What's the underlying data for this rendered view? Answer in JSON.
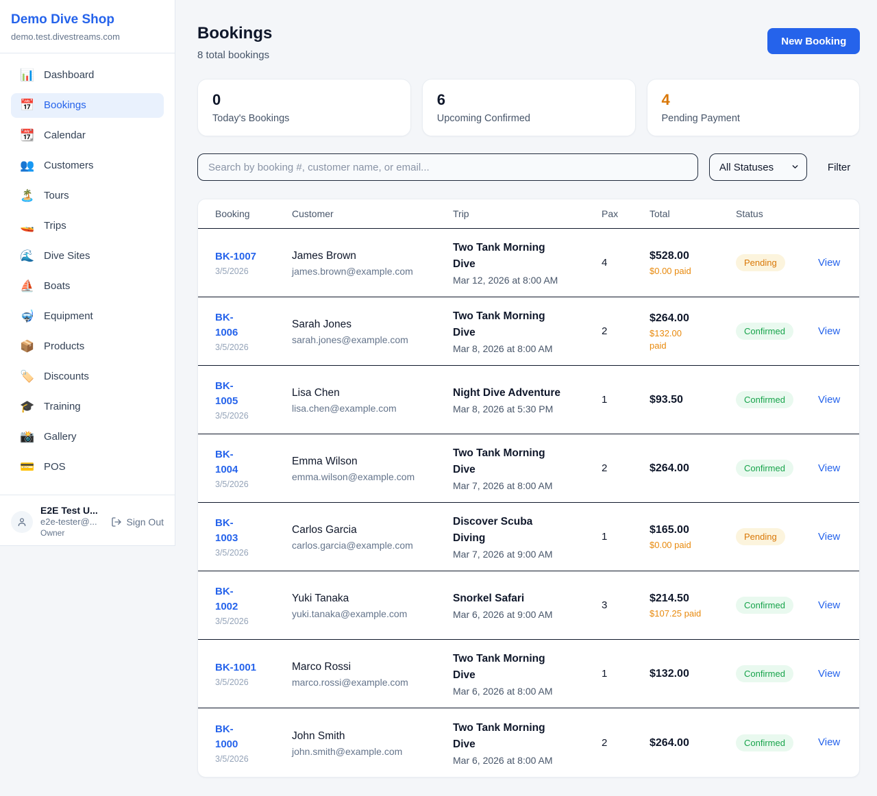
{
  "colors": {
    "accent": "#2563eb",
    "pending_text": "#d97706",
    "pending_bg": "#fcf4dd",
    "confirmed_text": "#16a34a",
    "confirmed_bg": "#e9f9ef",
    "paid_orange": "#e8890c"
  },
  "sidebar": {
    "shop_name": "Demo Dive Shop",
    "shop_domain": "demo.test.divestreams.com",
    "items": [
      {
        "name": "dashboard",
        "icon": "📊",
        "label": "Dashboard",
        "active": false
      },
      {
        "name": "bookings",
        "icon": "📅",
        "label": "Bookings",
        "active": true
      },
      {
        "name": "calendar",
        "icon": "📆",
        "label": "Calendar",
        "active": false
      },
      {
        "name": "customers",
        "icon": "👥",
        "label": "Customers",
        "active": false
      },
      {
        "name": "tours",
        "icon": "🏝️",
        "label": "Tours",
        "active": false
      },
      {
        "name": "trips",
        "icon": "🚤",
        "label": "Trips",
        "active": false
      },
      {
        "name": "dive-sites",
        "icon": "🌊",
        "label": "Dive Sites",
        "active": false
      },
      {
        "name": "boats",
        "icon": "⛵",
        "label": "Boats",
        "active": false
      },
      {
        "name": "equipment",
        "icon": "🤿",
        "label": "Equipment",
        "active": false
      },
      {
        "name": "products",
        "icon": "📦",
        "label": "Products",
        "active": false
      },
      {
        "name": "discounts",
        "icon": "🏷️",
        "label": "Discounts",
        "active": false
      },
      {
        "name": "training",
        "icon": "🎓",
        "label": "Training",
        "active": false
      },
      {
        "name": "gallery",
        "icon": "📸",
        "label": "Gallery",
        "active": false
      },
      {
        "name": "pos",
        "icon": "💳",
        "label": "POS",
        "active": false
      }
    ],
    "user": {
      "name": "E2E Test U...",
      "email": "e2e-tester@...",
      "role": "Owner",
      "sign_out_label": "Sign Out"
    }
  },
  "header": {
    "title": "Bookings",
    "subtitle": "8 total bookings",
    "new_booking_label": "New Booking"
  },
  "stats": [
    {
      "value": "0",
      "label": "Today's Bookings",
      "highlight": false
    },
    {
      "value": "6",
      "label": "Upcoming Confirmed",
      "highlight": false
    },
    {
      "value": "4",
      "label": "Pending Payment",
      "highlight": true
    }
  ],
  "filters": {
    "search_placeholder": "Search by booking #, customer name, or email...",
    "status_selected": "All Statuses",
    "filter_label": "Filter"
  },
  "table": {
    "columns": [
      "Booking",
      "Customer",
      "Trip",
      "Pax",
      "Total",
      "Status"
    ],
    "view_label": "View",
    "rows": [
      {
        "id": "BK-1007",
        "date": "3/5/2026",
        "customer": "James Brown",
        "email": "james.brown@example.com",
        "trip": "Two Tank Morning\nDive",
        "trip_date": "Mar 12, 2026 at 8:00 AM",
        "pax": "4",
        "total": "$528.00",
        "paid": "$0.00 paid",
        "status": "Pending",
        "status_type": "pending"
      },
      {
        "id": "BK-\n1006",
        "date": "3/5/2026",
        "customer": "Sarah Jones",
        "email": "sarah.jones@example.com",
        "trip": "Two Tank Morning\nDive",
        "trip_date": "Mar 8, 2026 at 8:00 AM",
        "pax": "2",
        "total": "$264.00",
        "paid": "$132.00\npaid",
        "status": "Confirmed",
        "status_type": "confirmed"
      },
      {
        "id": "BK-\n1005",
        "date": "3/5/2026",
        "customer": "Lisa Chen",
        "email": "lisa.chen@example.com",
        "trip": "Night Dive Adventure",
        "trip_date": "Mar 8, 2026 at 5:30 PM",
        "pax": "1",
        "total": "$93.50",
        "paid": "",
        "status": "Confirmed",
        "status_type": "confirmed"
      },
      {
        "id": "BK-\n1004",
        "date": "3/5/2026",
        "customer": "Emma Wilson",
        "email": "emma.wilson@example.com",
        "trip": "Two Tank Morning\nDive",
        "trip_date": "Mar 7, 2026 at 8:00 AM",
        "pax": "2",
        "total": "$264.00",
        "paid": "",
        "status": "Confirmed",
        "status_type": "confirmed"
      },
      {
        "id": "BK-\n1003",
        "date": "3/5/2026",
        "customer": "Carlos Garcia",
        "email": "carlos.garcia@example.com",
        "trip": "Discover Scuba\nDiving",
        "trip_date": "Mar 7, 2026 at 9:00 AM",
        "pax": "1",
        "total": "$165.00",
        "paid": "$0.00 paid",
        "status": "Pending",
        "status_type": "pending"
      },
      {
        "id": "BK-\n1002",
        "date": "3/5/2026",
        "customer": "Yuki Tanaka",
        "email": "yuki.tanaka@example.com",
        "trip": "Snorkel Safari",
        "trip_date": "Mar 6, 2026 at 9:00 AM",
        "pax": "3",
        "total": "$214.50",
        "paid": "$107.25 paid",
        "status": "Confirmed",
        "status_type": "confirmed"
      },
      {
        "id": "BK-1001",
        "date": "3/5/2026",
        "customer": "Marco Rossi",
        "email": "marco.rossi@example.com",
        "trip": "Two Tank Morning\nDive",
        "trip_date": "Mar 6, 2026 at 8:00 AM",
        "pax": "1",
        "total": "$132.00",
        "paid": "",
        "status": "Confirmed",
        "status_type": "confirmed"
      },
      {
        "id": "BK-\n1000",
        "date": "3/5/2026",
        "customer": "John Smith",
        "email": "john.smith@example.com",
        "trip": "Two Tank Morning\nDive",
        "trip_date": "Mar 6, 2026 at 8:00 AM",
        "pax": "2",
        "total": "$264.00",
        "paid": "",
        "status": "Confirmed",
        "status_type": "confirmed"
      }
    ]
  }
}
